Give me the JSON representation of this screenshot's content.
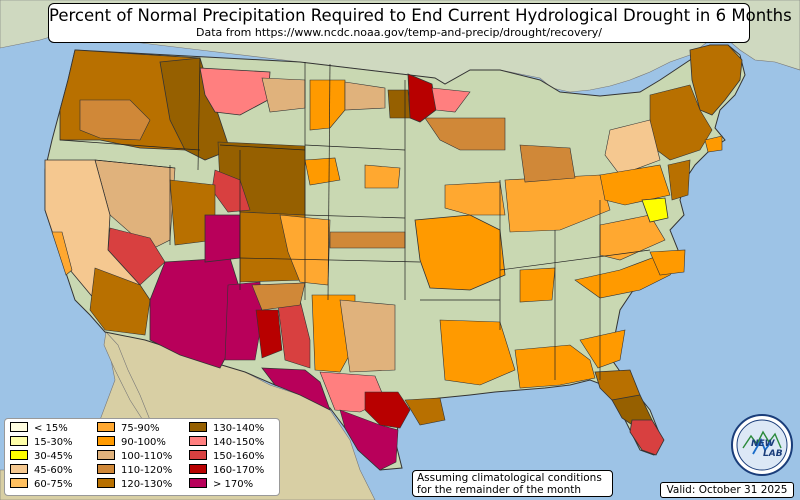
{
  "title": "Percent of Normal Precipitation Required to End Current Hydrological Drought in 6 Months",
  "subtitle": "Data from https://www.ncdc.noaa.gov/temp-and-precip/drought/recovery/",
  "legend": [
    {
      "label": "< 15%",
      "color": "#fffde0"
    },
    {
      "label": "15-30%",
      "color": "#ffffa8"
    },
    {
      "label": "30-45%",
      "color": "#ffff00"
    },
    {
      "label": "45-60%",
      "color": "#f5c890"
    },
    {
      "label": "60-75%",
      "color": "#ffc060"
    },
    {
      "label": "75-90%",
      "color": "#ffa830"
    },
    {
      "label": "90-100%",
      "color": "#ff9a00"
    },
    {
      "label": "100-110%",
      "color": "#e0b27c"
    },
    {
      "label": "110-120%",
      "color": "#d08838"
    },
    {
      "label": "120-130%",
      "color": "#b87000"
    },
    {
      "label": "130-140%",
      "color": "#966000"
    },
    {
      "label": "140-150%",
      "color": "#ff7f7f"
    },
    {
      "label": "150-160%",
      "color": "#d84040"
    },
    {
      "label": "160-170%",
      "color": "#b80000"
    },
    {
      "label": "> 170%",
      "color": "#b8005a"
    }
  ],
  "note": {
    "line1": "Assuming climatological conditions",
    "line2": "for the remainder of the month"
  },
  "valid": "Valid: October 31 2025",
  "logo": {
    "text": "NEW",
    "text2": "LAB"
  }
}
